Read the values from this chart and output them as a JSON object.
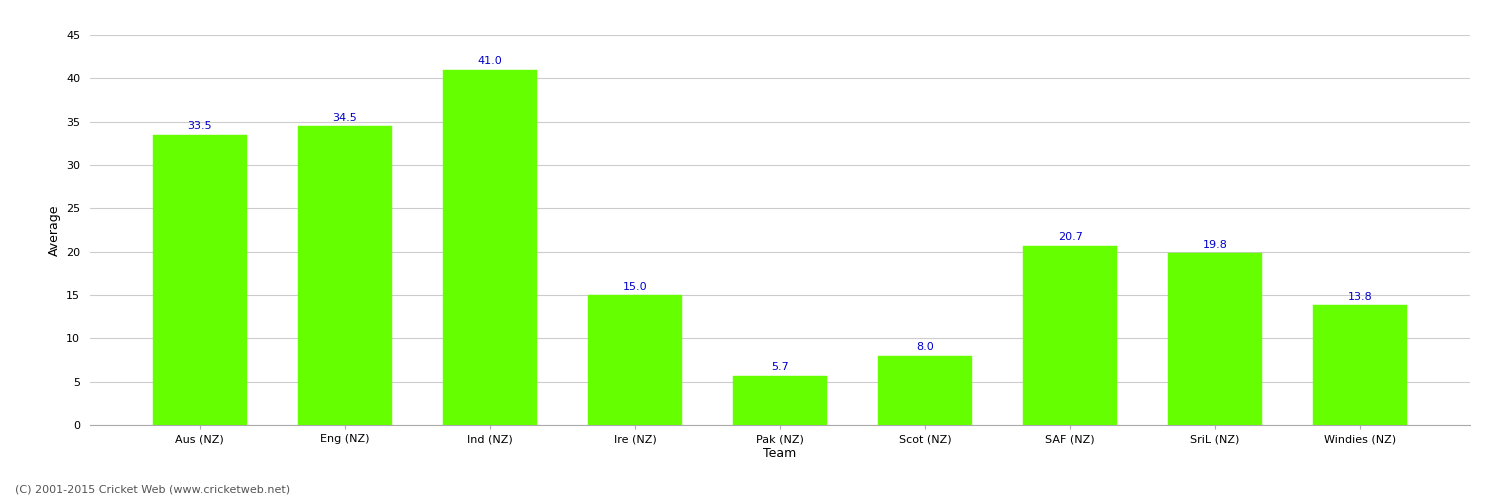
{
  "categories": [
    "Aus (NZ)",
    "Eng (NZ)",
    "Ind (NZ)",
    "Ire (NZ)",
    "Pak (NZ)",
    "Scot (NZ)",
    "SAF (NZ)",
    "SriL (NZ)",
    "Windies (NZ)"
  ],
  "values": [
    33.5,
    34.5,
    41.0,
    15.0,
    5.7,
    8.0,
    20.7,
    19.8,
    13.8
  ],
  "bar_color": "#66ff00",
  "bar_edge_color": "#66ff00",
  "xlabel": "Team",
  "ylabel": "Average",
  "ylim": [
    0,
    45
  ],
  "yticks": [
    0,
    5,
    10,
    15,
    20,
    25,
    30,
    35,
    40,
    45
  ],
  "label_color": "#0000cc",
  "label_fontsize": 8,
  "axis_label_fontsize": 9,
  "tick_fontsize": 8,
  "grid_color": "#cccccc",
  "background_color": "#ffffff",
  "footer_text": "(C) 2001-2015 Cricket Web (www.cricketweb.net)",
  "footer_fontsize": 8,
  "footer_color": "#555555",
  "bar_width": 0.65
}
